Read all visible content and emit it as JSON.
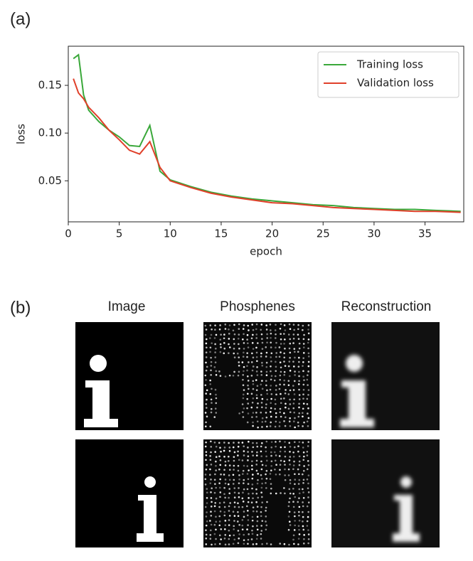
{
  "figure": {
    "panel_a": "(a)",
    "panel_b": "(b)",
    "columns": [
      "Image",
      "Phosphenes",
      "Reconstruction"
    ]
  },
  "chart_data": {
    "type": "line",
    "x_label": "epoch",
    "y_label": "loss",
    "x": [
      0.5,
      1,
      1.5,
      2,
      3,
      4,
      5,
      6,
      7,
      8,
      9,
      10,
      12,
      14,
      16,
      18,
      20,
      22,
      24,
      26,
      28,
      30,
      32,
      34,
      36,
      38.5
    ],
    "series": [
      {
        "name": "Training loss",
        "color": "#3aa83a",
        "values": [
          0.178,
          0.182,
          0.14,
          0.124,
          0.112,
          0.103,
          0.096,
          0.087,
          0.086,
          0.108,
          0.06,
          0.051,
          0.044,
          0.038,
          0.034,
          0.031,
          0.029,
          0.027,
          0.025,
          0.024,
          0.022,
          0.021,
          0.02,
          0.02,
          0.019,
          0.018
        ]
      },
      {
        "name": "Validation loss",
        "color": "#e0402a",
        "values": [
          0.157,
          0.142,
          0.136,
          0.127,
          0.116,
          0.103,
          0.093,
          0.082,
          0.078,
          0.091,
          0.064,
          0.05,
          0.043,
          0.037,
          0.033,
          0.03,
          0.027,
          0.026,
          0.024,
          0.022,
          0.021,
          0.02,
          0.019,
          0.018,
          0.018,
          0.017
        ]
      }
    ],
    "xlim": [
      0,
      38.8
    ],
    "ylim": [
      0.007,
      0.191
    ],
    "xticks": [
      0,
      5,
      10,
      15,
      20,
      25,
      30,
      35
    ],
    "yticks": [
      0.05,
      {
        "value": 0.1,
        "label": "0.10"
      },
      0.15
    ],
    "legend": "upper right"
  }
}
